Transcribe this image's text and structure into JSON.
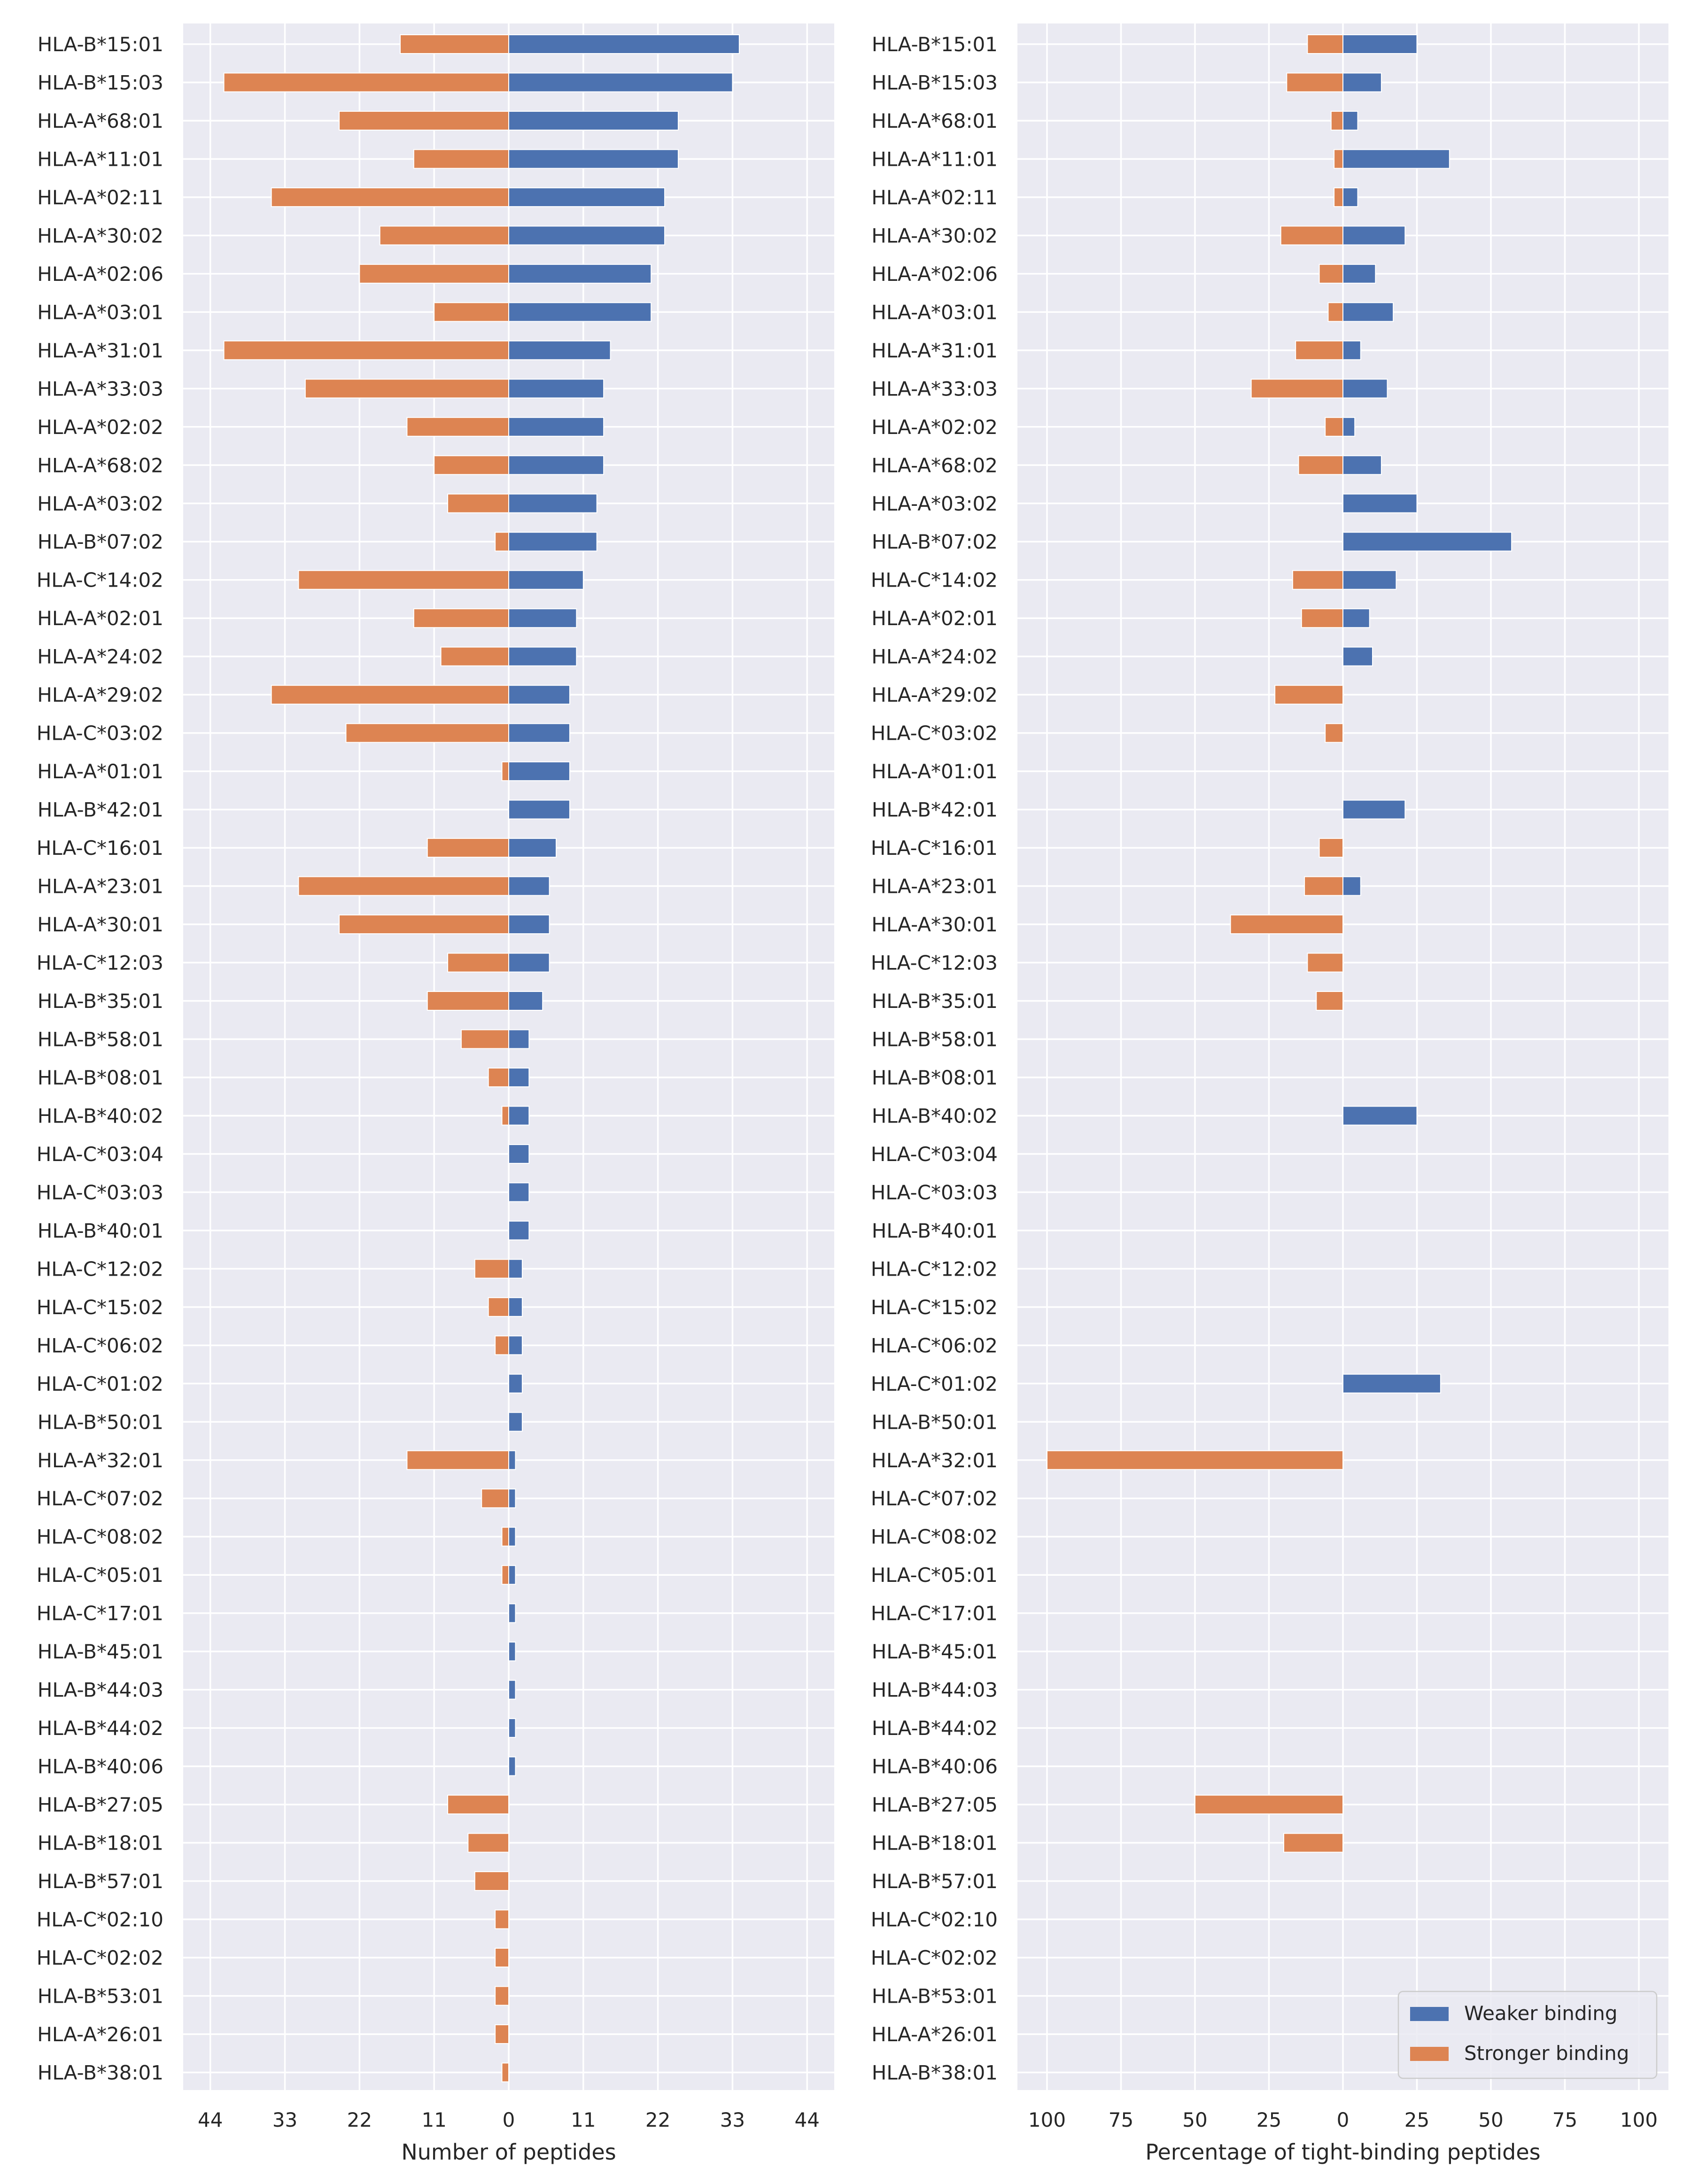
{
  "chart_data": [
    {
      "type": "bar",
      "orientation": "horizontal-diverging",
      "xlabel": "Number of peptides",
      "xlim": [
        -48,
        48
      ],
      "x_ticks": [
        -44,
        -33,
        -22,
        -11,
        0,
        11,
        22,
        33,
        44
      ],
      "x_tick_labels": [
        "44",
        "33",
        "22",
        "11",
        "0",
        "11",
        "22",
        "33",
        "44"
      ],
      "grid": true,
      "categories": [
        "HLA-B*15:01",
        "HLA-B*15:03",
        "HLA-A*68:01",
        "HLA-A*11:01",
        "HLA-A*02:11",
        "HLA-A*30:02",
        "HLA-A*02:06",
        "HLA-A*03:01",
        "HLA-A*31:01",
        "HLA-A*33:03",
        "HLA-A*02:02",
        "HLA-A*68:02",
        "HLA-A*03:02",
        "HLA-B*07:02",
        "HLA-C*14:02",
        "HLA-A*02:01",
        "HLA-A*24:02",
        "HLA-A*29:02",
        "HLA-C*03:02",
        "HLA-A*01:01",
        "HLA-B*42:01",
        "HLA-C*16:01",
        "HLA-A*23:01",
        "HLA-A*30:01",
        "HLA-C*12:03",
        "HLA-B*35:01",
        "HLA-B*58:01",
        "HLA-B*08:01",
        "HLA-B*40:02",
        "HLA-C*03:04",
        "HLA-C*03:03",
        "HLA-B*40:01",
        "HLA-C*12:02",
        "HLA-C*15:02",
        "HLA-C*06:02",
        "HLA-C*01:02",
        "HLA-B*50:01",
        "HLA-A*32:01",
        "HLA-C*07:02",
        "HLA-C*08:02",
        "HLA-C*05:01",
        "HLA-C*17:01",
        "HLA-B*45:01",
        "HLA-B*44:03",
        "HLA-B*44:02",
        "HLA-B*40:06",
        "HLA-B*27:05",
        "HLA-B*18:01",
        "HLA-B*57:01",
        "HLA-C*02:10",
        "HLA-C*02:02",
        "HLA-B*53:01",
        "HLA-A*26:01",
        "HLA-B*38:01"
      ],
      "series": [
        {
          "name": "Weaker binding",
          "color": "#4c72b0",
          "values": [
            34,
            33,
            25,
            25,
            23,
            23,
            21,
            21,
            15,
            14,
            14,
            14,
            13,
            13,
            11,
            10,
            10,
            9,
            9,
            9,
            9,
            7,
            6,
            6,
            6,
            5,
            3,
            3,
            3,
            3,
            3,
            3,
            2,
            2,
            2,
            2,
            2,
            1,
            1,
            1,
            1,
            1,
            1,
            1,
            1,
            1,
            0,
            0,
            0,
            0,
            0,
            0,
            0,
            0
          ]
        },
        {
          "name": "Stronger binding",
          "color": "#dd8452",
          "values": [
            -16,
            -42,
            -25,
            -14,
            -35,
            -19,
            -22,
            -11,
            -42,
            -30,
            -15,
            -11,
            -9,
            -2,
            -31,
            -14,
            -10,
            -35,
            -24,
            -1,
            0,
            -12,
            -31,
            -25,
            -9,
            -12,
            -7,
            -3,
            -1,
            0,
            0,
            0,
            -5,
            -3,
            -2,
            0,
            0,
            -15,
            -4,
            -1,
            -1,
            0,
            0,
            0,
            0,
            0,
            -9,
            -6,
            -5,
            -2,
            -2,
            -2,
            -2,
            -1
          ]
        }
      ]
    },
    {
      "type": "bar",
      "orientation": "horizontal-diverging",
      "xlabel": "Percentage of tight-binding peptides",
      "xlim": [
        -110,
        110
      ],
      "x_ticks": [
        -100,
        -75,
        -50,
        -25,
        0,
        25,
        50,
        75,
        100
      ],
      "x_tick_labels": [
        "100",
        "75",
        "50",
        "25",
        "0",
        "25",
        "50",
        "75",
        "100"
      ],
      "grid": true,
      "legend_position": "lower-right",
      "categories": [
        "HLA-B*15:01",
        "HLA-B*15:03",
        "HLA-A*68:01",
        "HLA-A*11:01",
        "HLA-A*02:11",
        "HLA-A*30:02",
        "HLA-A*02:06",
        "HLA-A*03:01",
        "HLA-A*31:01",
        "HLA-A*33:03",
        "HLA-A*02:02",
        "HLA-A*68:02",
        "HLA-A*03:02",
        "HLA-B*07:02",
        "HLA-C*14:02",
        "HLA-A*02:01",
        "HLA-A*24:02",
        "HLA-A*29:02",
        "HLA-C*03:02",
        "HLA-A*01:01",
        "HLA-B*42:01",
        "HLA-C*16:01",
        "HLA-A*23:01",
        "HLA-A*30:01",
        "HLA-C*12:03",
        "HLA-B*35:01",
        "HLA-B*58:01",
        "HLA-B*08:01",
        "HLA-B*40:02",
        "HLA-C*03:04",
        "HLA-C*03:03",
        "HLA-B*40:01",
        "HLA-C*12:02",
        "HLA-C*15:02",
        "HLA-C*06:02",
        "HLA-C*01:02",
        "HLA-B*50:01",
        "HLA-A*32:01",
        "HLA-C*07:02",
        "HLA-C*08:02",
        "HLA-C*05:01",
        "HLA-C*17:01",
        "HLA-B*45:01",
        "HLA-B*44:03",
        "HLA-B*44:02",
        "HLA-B*40:06",
        "HLA-B*27:05",
        "HLA-B*18:01",
        "HLA-B*57:01",
        "HLA-C*02:10",
        "HLA-C*02:02",
        "HLA-B*53:01",
        "HLA-A*26:01",
        "HLA-B*38:01"
      ],
      "series": [
        {
          "name": "Weaker binding",
          "color": "#4c72b0",
          "values": [
            25,
            13,
            5,
            36,
            5,
            21,
            11,
            17,
            6,
            15,
            4,
            13,
            25,
            57,
            18,
            9,
            10,
            0,
            0,
            0,
            21,
            0,
            6,
            0,
            0,
            0,
            0,
            0,
            25,
            0,
            0,
            0,
            0,
            0,
            0,
            33,
            0,
            0,
            0,
            0,
            0,
            0,
            0,
            0,
            0,
            0,
            0,
            0,
            0,
            0,
            0,
            0,
            0,
            0
          ]
        },
        {
          "name": "Stronger binding",
          "color": "#dd8452",
          "values": [
            -12,
            -19,
            -4,
            -3,
            -3,
            -21,
            -8,
            -5,
            -16,
            -31,
            -6,
            -15,
            0,
            0,
            -17,
            -14,
            0,
            -23,
            -6,
            0,
            0,
            -8,
            -13,
            -38,
            -12,
            -9,
            0,
            0,
            0,
            0,
            0,
            0,
            0,
            0,
            0,
            0,
            0,
            -100,
            0,
            0,
            0,
            0,
            0,
            0,
            0,
            0,
            -50,
            -20,
            0,
            0,
            0,
            0,
            0,
            0
          ]
        }
      ]
    }
  ]
}
